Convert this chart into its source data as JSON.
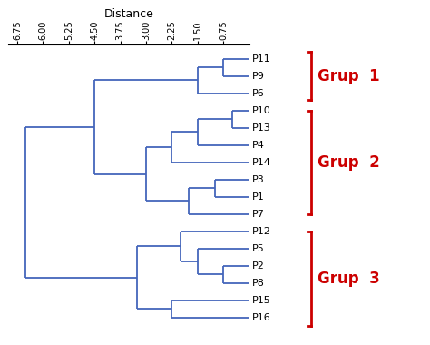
{
  "title": "Distance",
  "x_ticks": [
    6.75,
    6.0,
    5.25,
    4.5,
    3.75,
    3.0,
    2.25,
    1.5,
    0.75
  ],
  "leaves": [
    "P11",
    "P9",
    "P6",
    "P10",
    "P13",
    "P4",
    "P14",
    "P3",
    "P1",
    "P7",
    "P12",
    "P5",
    "P2",
    "P8",
    "P15",
    "P16"
  ],
  "line_color": "#4466bb",
  "bracket_color": "#cc0000",
  "background_color": "#ffffff",
  "font_size_title": 9,
  "font_size_ticks": 7,
  "font_size_labels": 8,
  "font_size_group": 12,
  "merges": [
    {
      "nodes": [
        "P11",
        "P9"
      ],
      "dist": 0.75
    },
    {
      "nodes": [
        "P11_P9",
        "P6"
      ],
      "dist": 1.5
    },
    {
      "nodes": [
        "P10",
        "P13"
      ],
      "dist": 0.5
    },
    {
      "nodes": [
        "P10_P13",
        "P4"
      ],
      "dist": 1.5
    },
    {
      "nodes": [
        "P10_P13_P4",
        "P14"
      ],
      "dist": 2.25
    },
    {
      "nodes": [
        "P3",
        "P1"
      ],
      "dist": 1.0
    },
    {
      "nodes": [
        "P3_P1",
        "P7"
      ],
      "dist": 1.75
    },
    {
      "nodes": [
        "P10_P13_P4_P14",
        "P3_P1_P7"
      ],
      "dist": 3.0
    },
    {
      "nodes": [
        "P11_P9_P6",
        "P10_P13_P4_P14_P3_P1_P7"
      ],
      "dist": 4.5
    },
    {
      "nodes": [
        "P2",
        "P8"
      ],
      "dist": 0.75
    },
    {
      "nodes": [
        "P5",
        "P2_P8"
      ],
      "dist": 1.5
    },
    {
      "nodes": [
        "P12",
        "P5_P2_P8"
      ],
      "dist": 2.0
    },
    {
      "nodes": [
        "P15",
        "P16"
      ],
      "dist": 2.25
    },
    {
      "nodes": [
        "P12_P5_P2_P8",
        "P15_P16"
      ],
      "dist": 3.25
    },
    {
      "nodes": [
        "P11_P9_P6_P10_P13_P4_P14_P3_P1_P7",
        "P12_P5_P2_P8_P15_P16"
      ],
      "dist": 6.5
    }
  ],
  "group1": {
    "y_min": -0.4,
    "y_max": 2.4,
    "label": "Grup  1"
  },
  "group2": {
    "y_min": 3.0,
    "y_max": 9.0,
    "label": "Grup  2"
  },
  "group3": {
    "y_min": 10.0,
    "y_max": 15.5,
    "label": "Grup  3"
  }
}
